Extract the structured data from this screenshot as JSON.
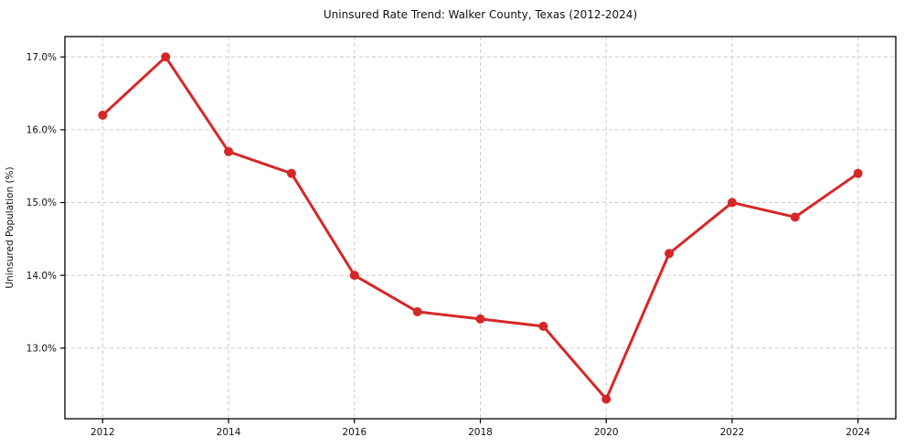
{
  "chart_data": {
    "type": "line",
    "title": "Uninsured Rate Trend: Walker County, Texas (2012-2024)",
    "xlabel": "",
    "ylabel": "Uninsured Population (%)",
    "x": [
      2012,
      2013,
      2014,
      2015,
      2016,
      2017,
      2018,
      2019,
      2020,
      2021,
      2022,
      2023,
      2024
    ],
    "values": [
      16.2,
      17.0,
      15.7,
      15.4,
      14.0,
      13.5,
      13.4,
      13.3,
      12.3,
      14.3,
      15.0,
      14.8,
      15.4
    ],
    "xlim": [
      2011.4,
      2024.6
    ],
    "ylim": [
      12.03,
      17.28
    ],
    "xticks": {
      "values": [
        2012,
        2014,
        2016,
        2018,
        2020,
        2022,
        2024
      ],
      "labels": [
        "2012",
        "2014",
        "2016",
        "2018",
        "2020",
        "2022",
        "2024"
      ]
    },
    "yticks": {
      "values": [
        13.0,
        14.0,
        15.0,
        16.0,
        17.0
      ],
      "labels": [
        "13.0%",
        "14.0%",
        "15.0%",
        "16.0%",
        "17.0%"
      ]
    },
    "grid": true,
    "legend_position": "none",
    "style": {
      "line_color": "#d62728",
      "marker_shape": "circle",
      "marker_size": 5,
      "line_width": 3,
      "grid_color": "#cccccc",
      "grid_dash": "4 3",
      "spine_color": "#000000",
      "tick_color": "#000000",
      "background_color": "#ffffff",
      "text_color": "#111111"
    }
  }
}
